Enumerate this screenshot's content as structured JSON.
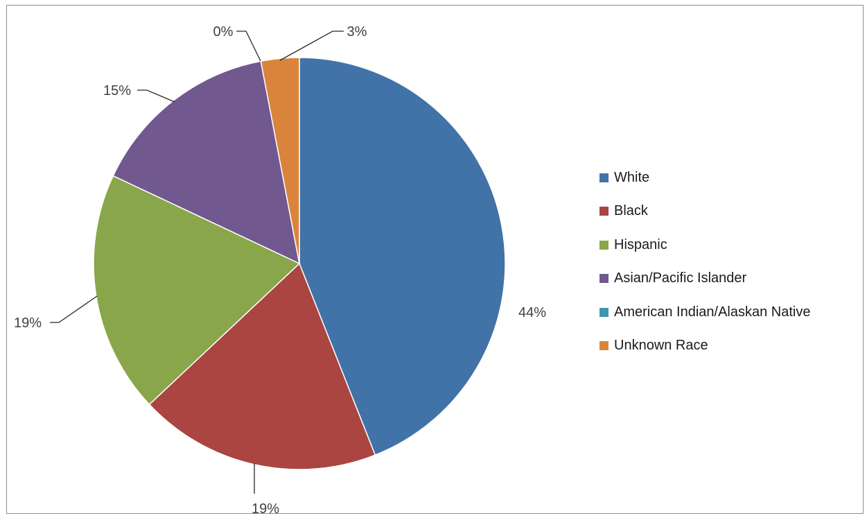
{
  "chart_data": {
    "type": "pie",
    "title": "",
    "series": [
      {
        "categories": [
          "White",
          "Black",
          "Hispanic",
          "Asian/Pacific Islander",
          "American Indian/Alaskan Native",
          "Unknown Race"
        ],
        "values": [
          44,
          19,
          19,
          15,
          0,
          3
        ],
        "value_labels": [
          "44%",
          "19%",
          "19%",
          "15%",
          "0%",
          "3%"
        ],
        "colors": [
          "#4172a8",
          "#aa4541",
          "#89a64a",
          "#71588f",
          "#3d97ae",
          "#da843b"
        ]
      }
    ],
    "legend": {
      "position": "right",
      "items": [
        {
          "label": "White",
          "color": "#4172a8"
        },
        {
          "label": "Black",
          "color": "#aa4541"
        },
        {
          "label": "Hispanic",
          "color": "#89a64a"
        },
        {
          "label": "Asian/Pacific Islander",
          "color": "#71588f"
        },
        {
          "label": "American Indian/Alaskan Native",
          "color": "#3d97ae"
        },
        {
          "label": "Unknown Race",
          "color": "#da843b"
        }
      ]
    }
  }
}
